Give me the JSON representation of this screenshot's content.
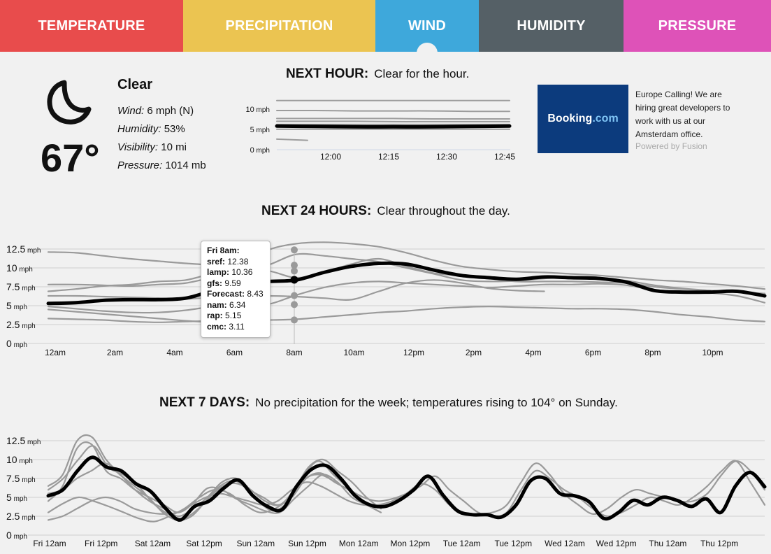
{
  "tabs": [
    {
      "label": "TEMPERATURE",
      "color": "#e84c4c"
    },
    {
      "label": "PRECIPITATION",
      "color": "#ebc451"
    },
    {
      "label": "WIND",
      "color": "#3ea8db"
    },
    {
      "label": "HUMIDITY",
      "color": "#556066"
    },
    {
      "label": "PRESSURE",
      "color": "#de52b8"
    }
  ],
  "current": {
    "icon": "moon-icon",
    "temperature": "67°",
    "summary": "Clear",
    "wind_label": "Wind:",
    "wind_value": "6 mph (N)",
    "humidity_label": "Humidity:",
    "humidity_value": "53%",
    "visibility_label": "Visibility:",
    "visibility_value": "10 mi",
    "pressure_label": "Pressure:",
    "pressure_value": "1014 mb"
  },
  "next_hour": {
    "title": "NEXT HOUR:",
    "text": "Clear for the hour."
  },
  "next_24": {
    "title": "NEXT 24 HOURS:",
    "text": "Clear throughout the day."
  },
  "next_7": {
    "title": "NEXT 7 DAYS:",
    "text": "No precipitation for the week; temperatures rising to 104° on Sunday."
  },
  "ad": {
    "logo_main": "Booking",
    "logo_dom": ".com",
    "text": "Europe Calling! We are hiring great developers to work with us at our Amsterdam office.",
    "powered": "Powered by Fusion"
  },
  "tooltip": {
    "title": "Fri 8am:",
    "rows": [
      {
        "name": "sref:",
        "value": "12.38"
      },
      {
        "name": "lamp:",
        "value": "10.36"
      },
      {
        "name": "gfs:",
        "value": "9.59"
      },
      {
        "name": "Forecast:",
        "value": "8.43"
      },
      {
        "name": "nam:",
        "value": "6.34"
      },
      {
        "name": "rap:",
        "value": "5.15"
      },
      {
        "name": "cmc:",
        "value": "3.11"
      }
    ]
  },
  "chart_data": [
    {
      "type": "line",
      "title": "NEXT HOUR",
      "unit": "mph",
      "y_ticks": [
        "10 mph",
        "5 mph",
        "0 mph"
      ],
      "ylim": [
        0,
        12.5
      ],
      "x_ticks": [
        "12:00",
        "12:15",
        "12:30",
        "12:45"
      ],
      "forecast": [
        5.6,
        5.5,
        5.4,
        5.4,
        5.4,
        5.5,
        5.6
      ],
      "models": [
        [
          12,
          12,
          12,
          12,
          12,
          12,
          12
        ],
        [
          9.5,
          9.5,
          9.4,
          9.4,
          9.4,
          9.3,
          9.3
        ],
        [
          7.5,
          7.5,
          7.5,
          7.5,
          7.4,
          7.4,
          7.4
        ],
        [
          6.8,
          6.8,
          6.8,
          6.7,
          6.7,
          6.7,
          6.7
        ],
        [
          6,
          6,
          6,
          6,
          6,
          6,
          6
        ],
        [
          4.8,
          4.8,
          4.8,
          4.8,
          4.8,
          4.8,
          4.8
        ],
        [
          2.3,
          2
        ]
      ]
    },
    {
      "type": "line",
      "title": "NEXT 24 HOURS",
      "unit": "mph",
      "y_ticks": [
        "12.5 mph",
        "10 mph",
        "7.5 mph",
        "5 mph",
        "2.5 mph",
        "0 mph"
      ],
      "ylim": [
        0,
        12.5
      ],
      "x_ticks": [
        "12am",
        "2am",
        "4am",
        "6am",
        "8am",
        "10am",
        "12pm",
        "2pm",
        "4pm",
        "6pm",
        "8pm",
        "10pm"
      ],
      "forecast": [
        5.3,
        5.4,
        5.7,
        5.8,
        5.8,
        6.0,
        7.0,
        7.8,
        8.2,
        8.4,
        9.4,
        10.2,
        10.6,
        10.5,
        9.7,
        9.0,
        8.7,
        8.5,
        8.8,
        8.7,
        8.6,
        8.1,
        7.0,
        6.8,
        6.8,
        6.9,
        6.3
      ],
      "models": [
        [
          12.1,
          12.0,
          11.6,
          11.2,
          10.9,
          10.6,
          10.4,
          10.5,
          12.4,
          13.2,
          13.4,
          13.2,
          12.8,
          12.0,
          11.0,
          10.2,
          9.8,
          9.5,
          9.4,
          9.2,
          9.0,
          8.7,
          8.4,
          8.2,
          7.9,
          7.6,
          7.2
        ],
        [
          7.8,
          7.8,
          7.7,
          7.6,
          7.8,
          8.0,
          8.8,
          9.5,
          10.4,
          11.8,
          11.6,
          11.2,
          10.8,
          10.0,
          9.2,
          8.4,
          8.2,
          8.3,
          8.6,
          8.8,
          8.7,
          8.3,
          7.7,
          7.3,
          7.0,
          6.8,
          6.6
        ],
        [
          6.9,
          7.2,
          7.6,
          7.8,
          8.2,
          8.4,
          9.3,
          9.7,
          9.6,
          8.7,
          9.4,
          10.5,
          11.2,
          10.2,
          9.3,
          9.0,
          8.6,
          8.2,
          8.2,
          8.2,
          8.1,
          8.0,
          7.5,
          7.2,
          7.0,
          6.8,
          6.6
        ],
        [
          6.3,
          6.3,
          6.2,
          6.1,
          6.0,
          5.9,
          6.1,
          6.2,
          6.3,
          6.2,
          6.0,
          5.8,
          6.9,
          8.0,
          8.4,
          8.0,
          7.3,
          7.0,
          6.9
        ],
        [
          4.9,
          4.6,
          4.3,
          4.1,
          4.1,
          4.4,
          4.9,
          5.1,
          5.2,
          6.4,
          7.4,
          8.0,
          8.2,
          8.0,
          7.8,
          7.6,
          7.4,
          7.6,
          7.8,
          7.8,
          7.9,
          7.7,
          7.1,
          6.9,
          6.7,
          6.3,
          5.4
        ],
        [
          3.3,
          3.2,
          3.1,
          2.9,
          2.8,
          2.9,
          3.0,
          3.1,
          3.1,
          3.2,
          3.5,
          3.8,
          4.1,
          4.3,
          4.6,
          4.8,
          4.9,
          4.8,
          4.7,
          4.6,
          4.6,
          4.5,
          4.2,
          3.8,
          3.5,
          3.1,
          2.9
        ],
        [
          4.5,
          4.2,
          3.9,
          3.6,
          3.3,
          3.0,
          2.8,
          2.7,
          3.0
        ]
      ]
    },
    {
      "type": "line",
      "title": "NEXT 7 DAYS",
      "unit": "mph",
      "y_ticks": [
        "12.5 mph",
        "10 mph",
        "7.5 mph",
        "5 mph",
        "2.5 mph",
        "0 mph"
      ],
      "ylim": [
        0,
        12.5
      ],
      "x_ticks": [
        "Fri 12am",
        "Fri 12pm",
        "Sat 12am",
        "Sat 12pm",
        "Sun 12am",
        "Sun 12pm",
        "Mon 12am",
        "Mon 12pm",
        "Tue 12am",
        "Tue 12pm",
        "Wed 12am",
        "Wed 12pm",
        "Thu 12am",
        "Thu 12pm"
      ],
      "forecast": [
        5.2,
        6.0,
        8.5,
        10.3,
        9.0,
        8.5,
        6.8,
        5.8,
        3.6,
        2.0,
        3.8,
        4.5,
        6.2,
        7.3,
        5.2,
        3.8,
        3.4,
        6.5,
        8.7,
        9.2,
        7.5,
        5.2,
        4.0,
        3.8,
        4.6,
        6.0,
        7.8,
        5.3,
        3.2,
        2.7,
        2.7,
        2.4,
        4.0,
        7.2,
        7.5,
        5.5,
        5.2,
        4.4,
        2.2,
        3.0,
        4.6,
        4.0,
        5.0,
        4.6,
        3.8,
        4.8,
        3.0,
        6.5,
        8.3,
        6.4
      ]
    }
  ]
}
